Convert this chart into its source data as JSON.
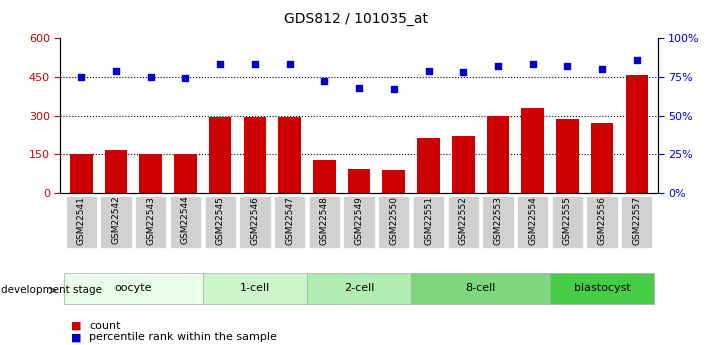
{
  "title": "GDS812 / 101035_at",
  "categories": [
    "GSM22541",
    "GSM22542",
    "GSM22543",
    "GSM22544",
    "GSM22545",
    "GSM22546",
    "GSM22547",
    "GSM22548",
    "GSM22549",
    "GSM22550",
    "GSM22551",
    "GSM22552",
    "GSM22553",
    "GSM22554",
    "GSM22555",
    "GSM22556",
    "GSM22557"
  ],
  "bar_values": [
    152,
    168,
    152,
    150,
    293,
    293,
    295,
    130,
    95,
    88,
    215,
    220,
    300,
    328,
    285,
    270,
    455
  ],
  "scatter_values": [
    75,
    79,
    75,
    74,
    83,
    83,
    83,
    72,
    68,
    67,
    79,
    78,
    82,
    83,
    82,
    80,
    86
  ],
  "bar_color": "#cc0000",
  "scatter_color": "#0000cc",
  "ylim_left": [
    0,
    600
  ],
  "ylim_right": [
    0,
    100
  ],
  "yticks_left": [
    0,
    150,
    300,
    450,
    600
  ],
  "yticks_right": [
    0,
    25,
    50,
    75,
    100
  ],
  "ytick_labels_right": [
    "0%",
    "25%",
    "50%",
    "75%",
    "100%"
  ],
  "grid_values": [
    150,
    300,
    450
  ],
  "groups": [
    {
      "label": "oocyte",
      "start": 0,
      "end": 4,
      "color": "#e8ffe8"
    },
    {
      "label": "1-cell",
      "start": 4,
      "end": 7,
      "color": "#ccf5cc"
    },
    {
      "label": "2-cell",
      "start": 7,
      "end": 10,
      "color": "#b0eeb0"
    },
    {
      "label": "8-cell",
      "start": 10,
      "end": 14,
      "color": "#7dd87d"
    },
    {
      "label": "blastocyst",
      "start": 14,
      "end": 17,
      "color": "#44cc44"
    }
  ],
  "dev_stage_label": "development stage",
  "legend_bar_label": "count",
  "legend_scatter_label": "percentile rank within the sample",
  "tick_label_bg": "#d0d0d0",
  "figsize": [
    7.11,
    3.45
  ],
  "dpi": 100
}
